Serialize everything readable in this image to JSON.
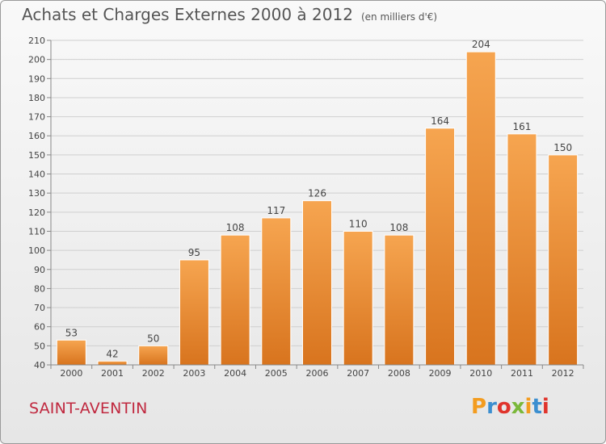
{
  "header": {
    "title": "Achats et Charges Externes 2000 à 2012",
    "unit": "(en milliers d'€)"
  },
  "footer": {
    "commune": "SAINT-AVENTIN",
    "logo_text": "Proxiti"
  },
  "colors": {
    "bar_top": "#f6a550",
    "bar_bottom": "#d8741e",
    "commune": "#c0283f",
    "logo_letters": [
      "#f39c1f",
      "#3c8fd0",
      "#e0342c",
      "#7bb83a",
      "#f39c1f",
      "#3c8fd0",
      "#e0342c"
    ]
  },
  "chart_data": {
    "type": "bar",
    "title": "Achats et Charges Externes 2000 à 2012",
    "subtitle": "(en milliers d'€)",
    "categories": [
      "2000",
      "2001",
      "2002",
      "2003",
      "2004",
      "2005",
      "2006",
      "2007",
      "2008",
      "2009",
      "2010",
      "2011",
      "2012"
    ],
    "values": [
      53,
      42,
      50,
      95,
      108,
      117,
      126,
      110,
      108,
      164,
      204,
      161,
      150
    ],
    "ylim": [
      40,
      210
    ],
    "yticks": [
      40,
      50,
      60,
      70,
      80,
      90,
      100,
      110,
      120,
      130,
      140,
      150,
      160,
      170,
      180,
      190,
      200,
      210
    ],
    "grid": true,
    "legend": "none"
  }
}
